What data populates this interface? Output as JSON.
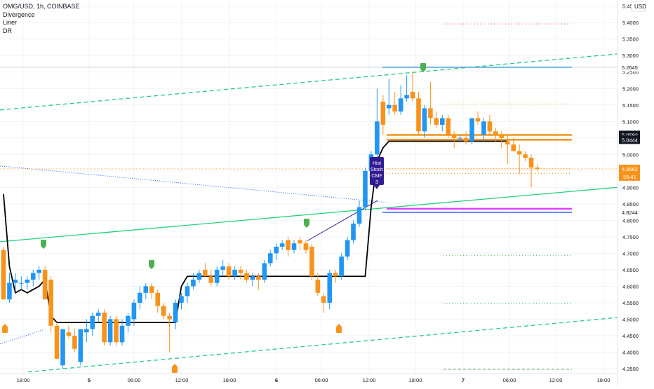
{
  "header": {
    "symbol_title": "OMG/USD, 1h, COINBASE",
    "indicators": [
      "Divergence",
      "Liner",
      "DR"
    ],
    "currency": "USD"
  },
  "chart_data": {
    "type": "candlestick",
    "title": "OMG/USD, 1h, COINBASE",
    "xlabel": "",
    "ylabel": "",
    "ylim": [
      4.335,
      5.46
    ],
    "y_ticks": [
      4.35,
      4.4,
      4.45,
      4.5,
      4.55,
      4.6,
      4.65,
      4.7,
      4.75,
      4.8,
      4.85,
      4.9,
      4.95,
      5.0,
      5.05,
      5.1,
      5.15,
      5.2,
      5.25,
      5.3,
      5.35,
      5.4,
      5.45
    ],
    "y_tick_labels": [
      "4.3500",
      "4.4000",
      "4.4500",
      "4.5000",
      "4.5500",
      "4.6000",
      "4.6500",
      "4.7000",
      "4.7500",
      "4.8000",
      "4.8500",
      "4.9000",
      "4.9500",
      "5.0000",
      "5.0500",
      "5.1000",
      "5.1500",
      "5.2000",
      "5.2500",
      "5.3000",
      "5.3500",
      "5.4000",
      "5.4500"
    ],
    "x_tick_labels": [
      "18:00",
      "5",
      "06:00",
      "12:00",
      "18:00",
      "6",
      "06:00",
      "12:00",
      "18:00",
      "7",
      "06:00",
      "12:00",
      "18:00"
    ],
    "grid": true,
    "colors": {
      "up": "#2196f3",
      "down": "#f7931a",
      "trend_channel": "#26c987",
      "support_line": "#26d07c",
      "liner": "#000000",
      "magenta": "#e040fb",
      "level_blue": "#2962ff",
      "price_label": "#f7931a",
      "dark_label": "#131722",
      "signal_green": "#4caf50",
      "signal_purple": "#311b92"
    },
    "candles": [
      {
        "o": 4.71,
        "h": 4.72,
        "l": 4.56,
        "c": 4.56
      },
      {
        "o": 4.56,
        "h": 4.64,
        "l": 4.55,
        "c": 4.61
      },
      {
        "o": 4.61,
        "h": 4.64,
        "l": 4.59,
        "c": 4.62
      },
      {
        "o": 4.61,
        "h": 4.63,
        "l": 4.59,
        "c": 4.61
      },
      {
        "o": 4.61,
        "h": 4.63,
        "l": 4.59,
        "c": 4.62
      },
      {
        "o": 4.62,
        "h": 4.65,
        "l": 4.6,
        "c": 4.64
      },
      {
        "o": 4.64,
        "h": 4.66,
        "l": 4.62,
        "c": 4.65
      },
      {
        "o": 4.65,
        "h": 4.66,
        "l": 4.56,
        "c": 4.56
      },
      {
        "o": 4.62,
        "h": 4.63,
        "l": 4.46,
        "c": 4.48
      },
      {
        "o": 4.48,
        "h": 4.49,
        "l": 4.38,
        "c": 4.38
      },
      {
        "o": 4.36,
        "h": 4.47,
        "l": 4.35,
        "c": 4.47
      },
      {
        "o": 4.46,
        "h": 4.48,
        "l": 4.44,
        "c": 4.45
      },
      {
        "o": 4.45,
        "h": 4.47,
        "l": 4.4,
        "c": 4.41
      },
      {
        "o": 4.37,
        "h": 4.47,
        "l": 4.36,
        "c": 4.47
      },
      {
        "o": 4.46,
        "h": 4.5,
        "l": 4.43,
        "c": 4.47
      },
      {
        "o": 4.47,
        "h": 4.52,
        "l": 4.45,
        "c": 4.51
      },
      {
        "o": 4.51,
        "h": 4.53,
        "l": 4.49,
        "c": 4.52
      },
      {
        "o": 4.52,
        "h": 4.53,
        "l": 4.42,
        "c": 4.43
      },
      {
        "o": 4.43,
        "h": 4.51,
        "l": 4.42,
        "c": 4.5
      },
      {
        "o": 4.5,
        "h": 4.51,
        "l": 4.42,
        "c": 4.43
      },
      {
        "o": 4.43,
        "h": 4.5,
        "l": 4.42,
        "c": 4.48
      },
      {
        "o": 4.48,
        "h": 4.52,
        "l": 4.46,
        "c": 4.51
      },
      {
        "o": 4.5,
        "h": 4.56,
        "l": 4.48,
        "c": 4.55
      },
      {
        "o": 4.55,
        "h": 4.6,
        "l": 4.53,
        "c": 4.58
      },
      {
        "o": 4.58,
        "h": 4.61,
        "l": 4.56,
        "c": 4.6
      },
      {
        "o": 4.6,
        "h": 4.61,
        "l": 4.56,
        "c": 4.58
      },
      {
        "o": 4.58,
        "h": 4.59,
        "l": 4.52,
        "c": 4.54
      },
      {
        "o": 4.54,
        "h": 4.55,
        "l": 4.5,
        "c": 4.51
      },
      {
        "o": 4.51,
        "h": 4.52,
        "l": 4.4,
        "c": 4.5
      },
      {
        "o": 4.49,
        "h": 4.56,
        "l": 4.47,
        "c": 4.55
      },
      {
        "o": 4.55,
        "h": 4.58,
        "l": 4.53,
        "c": 4.57
      },
      {
        "o": 4.57,
        "h": 4.61,
        "l": 4.55,
        "c": 4.6
      },
      {
        "o": 4.6,
        "h": 4.64,
        "l": 4.59,
        "c": 4.62
      },
      {
        "o": 4.62,
        "h": 4.65,
        "l": 4.61,
        "c": 4.64
      },
      {
        "o": 4.65,
        "h": 4.67,
        "l": 4.63,
        "c": 4.63
      },
      {
        "o": 4.63,
        "h": 4.65,
        "l": 4.6,
        "c": 4.61
      },
      {
        "o": 4.61,
        "h": 4.66,
        "l": 4.6,
        "c": 4.65
      },
      {
        "o": 4.65,
        "h": 4.68,
        "l": 4.63,
        "c": 4.66
      },
      {
        "o": 4.66,
        "h": 4.67,
        "l": 4.62,
        "c": 4.63
      },
      {
        "o": 4.63,
        "h": 4.66,
        "l": 4.62,
        "c": 4.65
      },
      {
        "o": 4.65,
        "h": 4.66,
        "l": 4.62,
        "c": 4.64
      },
      {
        "o": 4.64,
        "h": 4.65,
        "l": 4.61,
        "c": 4.62
      },
      {
        "o": 4.62,
        "h": 4.64,
        "l": 4.6,
        "c": 4.63
      },
      {
        "o": 4.63,
        "h": 4.64,
        "l": 4.59,
        "c": 4.62
      },
      {
        "o": 4.62,
        "h": 4.68,
        "l": 4.61,
        "c": 4.67
      },
      {
        "o": 4.67,
        "h": 4.71,
        "l": 4.66,
        "c": 4.7
      },
      {
        "o": 4.7,
        "h": 4.73,
        "l": 4.68,
        "c": 4.72
      },
      {
        "o": 4.72,
        "h": 4.74,
        "l": 4.71,
        "c": 4.73
      },
      {
        "o": 4.74,
        "h": 4.75,
        "l": 4.69,
        "c": 4.71
      },
      {
        "o": 4.71,
        "h": 4.74,
        "l": 4.7,
        "c": 4.73
      },
      {
        "o": 4.74,
        "h": 4.75,
        "l": 4.71,
        "c": 4.73
      },
      {
        "o": 4.73,
        "h": 4.74,
        "l": 4.7,
        "c": 4.71
      },
      {
        "o": 4.72,
        "h": 4.73,
        "l": 4.62,
        "c": 4.63
      },
      {
        "o": 4.62,
        "h": 4.64,
        "l": 4.57,
        "c": 4.58
      },
      {
        "o": 4.57,
        "h": 4.58,
        "l": 4.52,
        "c": 4.55
      },
      {
        "o": 4.55,
        "h": 4.65,
        "l": 4.53,
        "c": 4.64
      },
      {
        "o": 4.64,
        "h": 4.65,
        "l": 4.61,
        "c": 4.63
      },
      {
        "o": 4.63,
        "h": 4.7,
        "l": 4.62,
        "c": 4.69
      },
      {
        "o": 4.69,
        "h": 4.75,
        "l": 4.68,
        "c": 4.74
      },
      {
        "o": 4.74,
        "h": 4.8,
        "l": 4.73,
        "c": 4.79
      },
      {
        "o": 4.79,
        "h": 4.86,
        "l": 4.78,
        "c": 4.84
      },
      {
        "o": 4.84,
        "h": 4.96,
        "l": 4.83,
        "c": 4.95
      },
      {
        "o": 4.95,
        "h": 5.01,
        "l": 4.94,
        "c": 5.0
      },
      {
        "o": 5.0,
        "h": 5.2,
        "l": 4.98,
        "c": 5.1
      },
      {
        "o": 5.16,
        "h": 5.18,
        "l": 5.06,
        "c": 5.09
      },
      {
        "o": 5.14,
        "h": 5.23,
        "l": 5.12,
        "c": 5.15
      },
      {
        "o": 5.15,
        "h": 5.19,
        "l": 5.12,
        "c": 5.13
      },
      {
        "o": 5.13,
        "h": 5.21,
        "l": 5.12,
        "c": 5.17
      },
      {
        "o": 5.17,
        "h": 5.24,
        "l": 5.16,
        "c": 5.18
      },
      {
        "o": 5.19,
        "h": 5.25,
        "l": 5.16,
        "c": 5.17
      },
      {
        "o": 5.17,
        "h": 5.19,
        "l": 5.06,
        "c": 5.07
      },
      {
        "o": 5.07,
        "h": 5.15,
        "l": 5.05,
        "c": 5.14
      },
      {
        "o": 5.14,
        "h": 5.22,
        "l": 5.09,
        "c": 5.11
      },
      {
        "o": 5.11,
        "h": 5.13,
        "l": 5.08,
        "c": 5.09
      },
      {
        "o": 5.09,
        "h": 5.12,
        "l": 5.07,
        "c": 5.11
      },
      {
        "o": 5.11,
        "h": 5.12,
        "l": 5.05,
        "c": 5.06
      },
      {
        "o": 5.06,
        "h": 5.07,
        "l": 5.02,
        "c": 5.05
      },
      {
        "o": 5.05,
        "h": 5.06,
        "l": 5.04,
        "c": 5.05
      },
      {
        "o": 5.05,
        "h": 5.07,
        "l": 5.03,
        "c": 5.04
      },
      {
        "o": 5.04,
        "h": 5.11,
        "l": 5.03,
        "c": 5.11
      },
      {
        "o": 5.11,
        "h": 5.13,
        "l": 5.09,
        "c": 5.1
      },
      {
        "o": 5.06,
        "h": 5.11,
        "l": 5.04,
        "c": 5.1
      },
      {
        "o": 5.1,
        "h": 5.12,
        "l": 5.06,
        "c": 5.07
      },
      {
        "o": 5.07,
        "h": 5.08,
        "l": 5.04,
        "c": 5.06
      },
      {
        "o": 5.06,
        "h": 5.07,
        "l": 5.02,
        "c": 5.05
      },
      {
        "o": 5.04,
        "h": 5.06,
        "l": 4.97,
        "c": 5.03
      },
      {
        "o": 5.03,
        "h": 5.05,
        "l": 5.01,
        "c": 5.01
      },
      {
        "o": 5.01,
        "h": 5.03,
        "l": 4.94,
        "c": 5.0
      },
      {
        "o": 5.0,
        "h": 5.01,
        "l": 4.98,
        "c": 4.99
      },
      {
        "o": 4.99,
        "h": 5.0,
        "l": 4.9,
        "c": 4.96
      },
      {
        "o": 4.96,
        "h": 4.97,
        "l": 4.95,
        "c": 4.956
      }
    ],
    "liner": [
      4.88,
      4.66,
      4.58,
      4.59,
      4.58,
      4.59,
      4.6,
      4.62,
      4.51,
      4.49,
      4.49,
      4.49,
      4.49,
      4.49,
      4.49,
      4.49,
      4.49,
      4.49,
      4.49,
      4.49,
      4.49,
      4.49,
      4.49,
      4.49,
      4.49,
      4.49,
      4.49,
      4.49,
      4.49,
      4.49,
      4.6,
      4.63,
      4.63,
      4.63,
      4.63,
      4.63,
      4.63,
      4.63,
      4.63,
      4.63,
      4.63,
      4.63,
      4.63,
      4.63,
      4.63,
      4.63,
      4.63,
      4.63,
      4.63,
      4.63,
      4.63,
      4.63,
      4.63,
      4.63,
      4.63,
      4.63,
      4.63,
      4.63,
      4.63,
      4.63,
      4.63,
      4.63,
      4.84,
      4.98,
      5.02,
      5.04,
      5.04,
      5.04,
      5.04,
      5.04,
      5.04,
      5.04,
      5.04,
      5.04,
      5.04,
      5.04,
      5.04,
      5.04,
      5.04,
      5.04,
      5.04,
      5.04,
      5.04,
      5.04,
      5.04,
      5.04
    ],
    "hlines": [
      {
        "value": 5.2645,
        "color": "#2196f3",
        "style": "solid"
      },
      {
        "value": 5.0592,
        "color": "#f7931a",
        "style": "solid"
      },
      {
        "value": 5.0444,
        "color": "#f7931a",
        "style": "solid"
      },
      {
        "value": 4.8244,
        "color": "#2962ff",
        "style": "solid"
      },
      {
        "value": 4.835,
        "color": "#e040fb",
        "style": "solid"
      },
      {
        "value": 4.9562,
        "color": "#f7931a",
        "style": "dotted"
      },
      {
        "value": 4.942,
        "color": "#f7931a",
        "style": "dotted"
      },
      {
        "value": 5.396,
        "color": "#ef5350",
        "style": "dotted"
      },
      {
        "value": 5.153,
        "color": "#fbc02d",
        "style": "dotted"
      },
      {
        "value": 4.694,
        "color": "#4caf50",
        "style": "dotted"
      },
      {
        "value": 4.547,
        "color": "#26a69a",
        "style": "dotted"
      },
      {
        "value": 4.348,
        "color": "#4caf50",
        "style": "dashed"
      }
    ],
    "price_labels": [
      {
        "text": "5.2645",
        "value": 5.2645,
        "style": "plain"
      },
      {
        "text": "5.0592",
        "value": 5.0592,
        "style": "dark"
      },
      {
        "text": "5.0444",
        "value": 5.0444,
        "style": "dark"
      },
      {
        "text": "4.9562",
        "value": 4.9562,
        "style": "orange"
      },
      {
        "text": "4.8244",
        "value": 4.8244,
        "style": "plain"
      }
    ],
    "countdown": "55:41",
    "signal_label": [
      "Hist",
      "Stoch",
      "CMF",
      "3"
    ],
    "legend_placement": "top-left"
  }
}
